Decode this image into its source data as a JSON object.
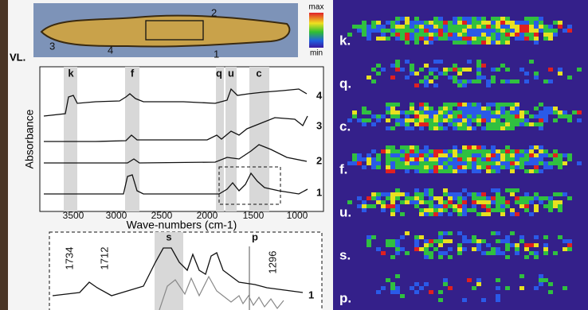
{
  "photo": {
    "labels": [
      "2",
      "3",
      "4",
      "1"
    ],
    "side_label": "VL."
  },
  "colorbar": {
    "max": "max",
    "min": "min"
  },
  "spectra": {
    "y_label": "Absorbance",
    "x_label": "Wave-numbers (cm-1)",
    "x_ticks": [
      "3500",
      "3000",
      "2500",
      "2000",
      "1500",
      "1000"
    ],
    "bands": [
      "k",
      "f",
      "q",
      "u",
      "c"
    ],
    "traces": [
      "4",
      "3",
      "2",
      "1"
    ]
  },
  "inset": {
    "peaks": [
      "1734",
      "1712",
      "1296"
    ],
    "bands": [
      "s",
      "p"
    ],
    "trace": "1"
  },
  "maps": [
    "k.",
    "q.",
    "c.",
    "f.",
    "u.",
    "s.",
    "p."
  ]
}
